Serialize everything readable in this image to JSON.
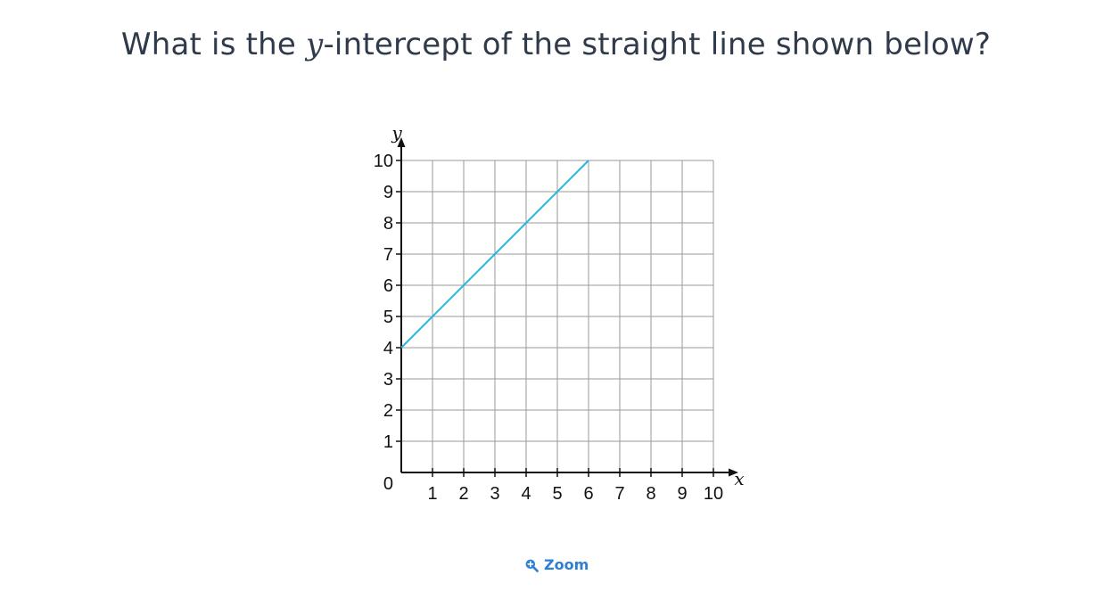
{
  "question": {
    "prefix": "What is the ",
    "variable": "y",
    "suffix": "-intercept of the straight line shown below?"
  },
  "zoom": {
    "label": "Zoom",
    "icon": "zoom-in-icon"
  },
  "chart_data": {
    "type": "line",
    "title": "",
    "xlabel": "x",
    "ylabel": "y",
    "xlim": [
      0,
      10
    ],
    "ylim": [
      0,
      10
    ],
    "x_ticks": [
      "1",
      "2",
      "3",
      "4",
      "5",
      "6",
      "7",
      "8",
      "9",
      "10"
    ],
    "y_ticks": [
      "1",
      "2",
      "3",
      "4",
      "5",
      "6",
      "7",
      "8",
      "9",
      "10"
    ],
    "origin_label": "0",
    "grid": true,
    "line_color": "#29b3df",
    "series": [
      {
        "x": [
          0,
          6
        ],
        "y": [
          4,
          10
        ]
      }
    ]
  }
}
